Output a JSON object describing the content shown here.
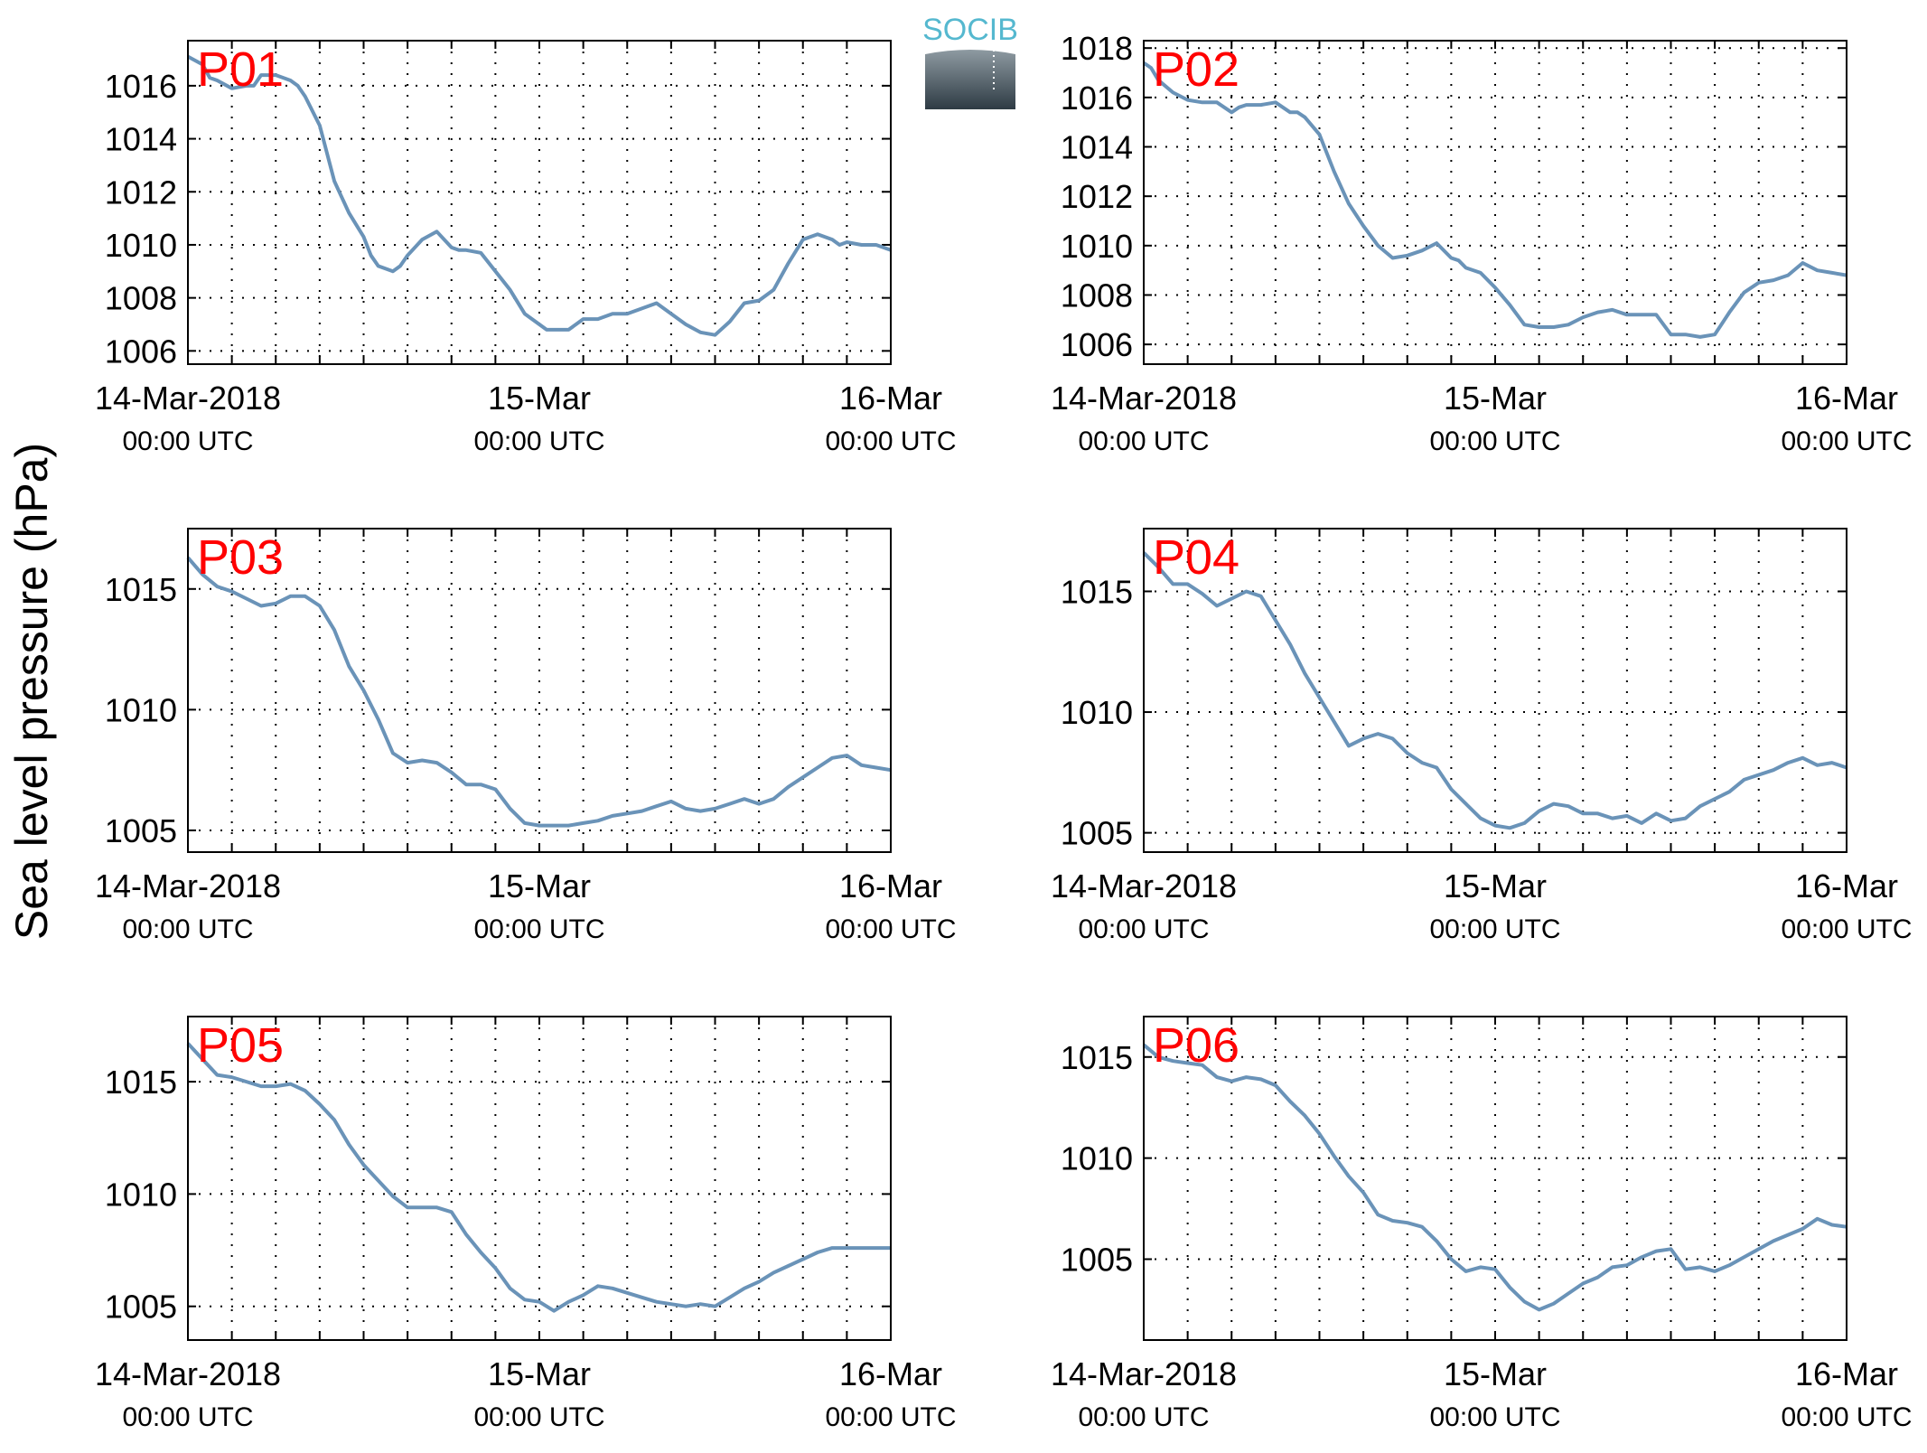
{
  "ylabel": "Sea level pressure (hPa)",
  "logo": {
    "text": "SOCIB",
    "color": "#55b8cf",
    "icon": "socib-logo"
  },
  "line_color": "#6a93b8",
  "panel_label_color": "#ff0000",
  "x_tick_labels": [
    {
      "line1": "14-Mar-2018",
      "line2": "00:00 UTC"
    },
    {
      "line1": "15-Mar",
      "line2": "00:00 UTC"
    },
    {
      "line1": "16-Mar",
      "line2": "00:00 UTC"
    }
  ],
  "chart_data": [
    {
      "type": "line",
      "label": "P01",
      "xlim": [
        0,
        48
      ],
      "ylim": [
        1005.5,
        1017.7
      ],
      "yticks": [
        1006,
        1008,
        1010,
        1012,
        1014,
        1016
      ],
      "xgrid_step": 3,
      "grid": true,
      "x": [
        0,
        1,
        1.5,
        2,
        3,
        4,
        4.5,
        5,
        6,
        7,
        7.5,
        8,
        9,
        10,
        11,
        12,
        12.5,
        13,
        14,
        14.5,
        15,
        16,
        17,
        18,
        18.5,
        19,
        20,
        21,
        22,
        23,
        24,
        24.5,
        25,
        26,
        27,
        28,
        29,
        29.5,
        30,
        31,
        32,
        33,
        34,
        35,
        36,
        37,
        38,
        39,
        40,
        41,
        42,
        43,
        44,
        44.5,
        45,
        46,
        47,
        48
      ],
      "y": [
        1017.1,
        1016.8,
        1016.3,
        1016.2,
        1015.9,
        1016.0,
        1016.0,
        1016.4,
        1016.4,
        1016.2,
        1016.0,
        1015.6,
        1014.5,
        1012.4,
        1011.2,
        1010.3,
        1009.6,
        1009.2,
        1009.0,
        1009.2,
        1009.6,
        1010.2,
        1010.5,
        1009.9,
        1009.8,
        1009.8,
        1009.7,
        1009.0,
        1008.3,
        1007.4,
        1007.0,
        1006.8,
        1006.8,
        1006.8,
        1007.2,
        1007.2,
        1007.4,
        1007.4,
        1007.4,
        1007.6,
        1007.8,
        1007.4,
        1007.0,
        1006.7,
        1006.6,
        1007.1,
        1007.8,
        1007.9,
        1008.3,
        1009.3,
        1010.2,
        1010.4,
        1010.2,
        1010.0,
        1010.1,
        1010.0,
        1010.0,
        1009.8
      ]
    },
    {
      "type": "line",
      "label": "P02",
      "xlim": [
        0,
        48
      ],
      "ylim": [
        1005.2,
        1018.3
      ],
      "yticks": [
        1006,
        1008,
        1010,
        1012,
        1014,
        1016,
        1018
      ],
      "xgrid_step": 3,
      "grid": true,
      "x": [
        0,
        0.5,
        1,
        2,
        3,
        4,
        5,
        6,
        6.5,
        7,
        8,
        9,
        10,
        10.5,
        11,
        12,
        13,
        14,
        15,
        16,
        17,
        18,
        19,
        20,
        21,
        21.5,
        22,
        23,
        24,
        25,
        26,
        27,
        28,
        29,
        30,
        31,
        32,
        33,
        34,
        35,
        36,
        37,
        38,
        39,
        40,
        41,
        42,
        43,
        44,
        45,
        46,
        47,
        48
      ],
      "y": [
        1017.4,
        1017.2,
        1016.7,
        1016.2,
        1015.9,
        1015.8,
        1015.8,
        1015.4,
        1015.6,
        1015.7,
        1015.7,
        1015.8,
        1015.4,
        1015.4,
        1015.2,
        1014.5,
        1013.0,
        1011.7,
        1010.8,
        1010.0,
        1009.5,
        1009.6,
        1009.8,
        1010.1,
        1009.5,
        1009.4,
        1009.1,
        1008.9,
        1008.3,
        1007.6,
        1006.8,
        1006.7,
        1006.7,
        1006.8,
        1007.1,
        1007.3,
        1007.4,
        1007.2,
        1007.2,
        1007.2,
        1006.4,
        1006.4,
        1006.3,
        1006.4,
        1007.3,
        1008.1,
        1008.5,
        1008.6,
        1008.8,
        1009.3,
        1009.0,
        1008.9,
        1008.8
      ]
    },
    {
      "type": "line",
      "label": "P03",
      "xlim": [
        0,
        48
      ],
      "ylim": [
        1004.1,
        1017.5
      ],
      "yticks": [
        1005,
        1010,
        1015
      ],
      "xgrid_step": 3,
      "grid": true,
      "x": [
        0,
        1,
        2,
        3,
        4,
        5,
        6,
        7,
        8,
        9,
        10,
        11,
        12,
        13,
        14,
        15,
        16,
        17,
        18,
        19,
        20,
        21,
        22,
        23,
        24,
        25,
        26,
        27,
        28,
        29,
        30,
        31,
        32,
        33,
        34,
        35,
        36,
        37,
        38,
        39,
        40,
        41,
        42,
        43,
        44,
        45,
        46,
        47,
        48
      ],
      "y": [
        1016.3,
        1015.6,
        1015.1,
        1014.9,
        1014.6,
        1014.3,
        1014.4,
        1014.7,
        1014.7,
        1014.3,
        1013.3,
        1011.8,
        1010.8,
        1009.6,
        1008.2,
        1007.8,
        1007.9,
        1007.8,
        1007.4,
        1006.9,
        1006.9,
        1006.7,
        1005.9,
        1005.3,
        1005.2,
        1005.2,
        1005.2,
        1005.3,
        1005.4,
        1005.6,
        1005.7,
        1005.8,
        1006.0,
        1006.2,
        1005.9,
        1005.8,
        1005.9,
        1006.1,
        1006.3,
        1006.1,
        1006.3,
        1006.8,
        1007.2,
        1007.6,
        1008.0,
        1008.1,
        1007.7,
        1007.6,
        1007.5
      ]
    },
    {
      "type": "line",
      "label": "P04",
      "xlim": [
        0,
        48
      ],
      "ylim": [
        1004.2,
        1017.6
      ],
      "yticks": [
        1005,
        1010,
        1015
      ],
      "xgrid_step": 3,
      "grid": true,
      "x": [
        0,
        1,
        2,
        3,
        4,
        5,
        6,
        7,
        8,
        9,
        10,
        11,
        12,
        13,
        14,
        15,
        16,
        17,
        18,
        19,
        20,
        21,
        22,
        23,
        24,
        25,
        26,
        27,
        28,
        29,
        30,
        31,
        32,
        33,
        34,
        35,
        36,
        37,
        38,
        39,
        40,
        41,
        42,
        43,
        44,
        45,
        46,
        47,
        48
      ],
      "y": [
        1016.6,
        1016.0,
        1015.3,
        1015.3,
        1014.9,
        1014.4,
        1014.7,
        1015.0,
        1014.8,
        1013.8,
        1012.8,
        1011.6,
        1010.6,
        1009.6,
        1008.6,
        1008.9,
        1009.1,
        1008.9,
        1008.3,
        1007.9,
        1007.7,
        1006.8,
        1006.2,
        1005.6,
        1005.3,
        1005.2,
        1005.4,
        1005.9,
        1006.2,
        1006.1,
        1005.8,
        1005.8,
        1005.6,
        1005.7,
        1005.4,
        1005.8,
        1005.5,
        1005.6,
        1006.1,
        1006.4,
        1006.7,
        1007.2,
        1007.4,
        1007.6,
        1007.9,
        1008.1,
        1007.8,
        1007.9,
        1007.7
      ]
    },
    {
      "type": "line",
      "label": "P05",
      "xlim": [
        0,
        48
      ],
      "ylim": [
        1003.5,
        1017.9
      ],
      "yticks": [
        1005,
        1010,
        1015
      ],
      "xgrid_step": 3,
      "grid": true,
      "x": [
        0,
        1,
        2,
        3,
        4,
        5,
        6,
        7,
        8,
        9,
        10,
        11,
        12,
        13,
        14,
        15,
        16,
        17,
        18,
        19,
        20,
        21,
        22,
        23,
        24,
        25,
        26,
        27,
        28,
        29,
        30,
        31,
        32,
        33,
        34,
        35,
        36,
        37,
        38,
        39,
        40,
        41,
        42,
        43,
        44,
        45,
        46,
        47,
        48
      ],
      "y": [
        1016.7,
        1016.0,
        1015.3,
        1015.2,
        1015.0,
        1014.8,
        1014.8,
        1014.9,
        1014.6,
        1014.0,
        1013.3,
        1012.2,
        1011.3,
        1010.6,
        1009.9,
        1009.4,
        1009.4,
        1009.4,
        1009.2,
        1008.2,
        1007.4,
        1006.7,
        1005.8,
        1005.3,
        1005.2,
        1004.8,
        1005.2,
        1005.5,
        1005.9,
        1005.8,
        1005.6,
        1005.4,
        1005.2,
        1005.1,
        1005.0,
        1005.1,
        1005.0,
        1005.4,
        1005.8,
        1006.1,
        1006.5,
        1006.8,
        1007.1,
        1007.4,
        1007.6,
        1007.6,
        1007.6,
        1007.6,
        1007.6
      ]
    },
    {
      "type": "line",
      "label": "P06",
      "xlim": [
        0,
        48
      ],
      "ylim": [
        1001.0,
        1017.0
      ],
      "yticks": [
        1005,
        1010,
        1015
      ],
      "xgrid_step": 3,
      "grid": true,
      "x": [
        0,
        1,
        2,
        3,
        4,
        5,
        6,
        7,
        8,
        9,
        10,
        11,
        12,
        13,
        14,
        15,
        16,
        17,
        18,
        19,
        20,
        21,
        22,
        23,
        24,
        25,
        26,
        27,
        28,
        29,
        30,
        31,
        32,
        33,
        34,
        35,
        36,
        37,
        38,
        39,
        40,
        41,
        42,
        43,
        44,
        45,
        46,
        47,
        48
      ],
      "y": [
        1015.6,
        1015.0,
        1014.8,
        1014.7,
        1014.6,
        1014.0,
        1013.8,
        1014.0,
        1013.9,
        1013.6,
        1012.8,
        1012.1,
        1011.2,
        1010.1,
        1009.1,
        1008.3,
        1007.2,
        1006.9,
        1006.8,
        1006.6,
        1005.9,
        1005.0,
        1004.4,
        1004.6,
        1004.5,
        1003.6,
        1002.9,
        1002.5,
        1002.8,
        1003.3,
        1003.8,
        1004.1,
        1004.6,
        1004.7,
        1005.1,
        1005.4,
        1005.5,
        1004.5,
        1004.6,
        1004.4,
        1004.7,
        1005.1,
        1005.5,
        1005.9,
        1006.2,
        1006.5,
        1007.0,
        1006.7,
        1006.6
      ]
    }
  ]
}
